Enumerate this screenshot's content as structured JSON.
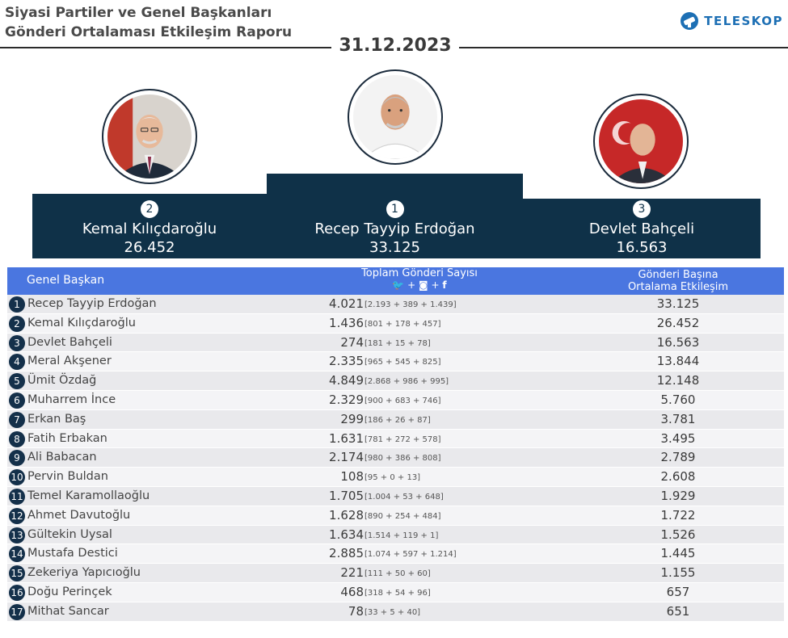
{
  "header": {
    "title_line1": "Siyasi Partiler ve Genel Başkanları",
    "title_line2": "Gönderi Ortalaması Etkileşim Raporu",
    "brand": "TELESKOP",
    "date": "31.12.2023"
  },
  "colors": {
    "navy": "#0f3148",
    "header_blue": "#4a76e0",
    "brand_blue": "#1d6fb4"
  },
  "podium": [
    {
      "rank": "2",
      "name": "Kemal Kılıçdaroğlu",
      "score": "26.452"
    },
    {
      "rank": "1",
      "name": "Recep Tayyip Erdoğan",
      "score": "33.125"
    },
    {
      "rank": "3",
      "name": "Devlet Bahçeli",
      "score": "16.563"
    }
  ],
  "table": {
    "col_name": "Genel Başkan",
    "col_posts": "Toplam Gönderi Sayısı",
    "col_posts_icons": "twitter-icon + instagram-icon + facebook-icon",
    "col_eng_line1": "Gönderi Başına",
    "col_eng_line2": "Ortalama Etkileşim",
    "rows": [
      {
        "rank": "1",
        "name": "Recep Tayyip Erdoğan",
        "total": "4.021",
        "breakdown": "[2.193 + 389 + 1.439]",
        "engagement": "33.125"
      },
      {
        "rank": "2",
        "name": "Kemal Kılıçdaroğlu",
        "total": "1.436",
        "breakdown": "[801 + 178 + 457]",
        "engagement": "26.452"
      },
      {
        "rank": "3",
        "name": "Devlet Bahçeli",
        "total": "274",
        "breakdown": "[181 + 15 + 78]",
        "engagement": "16.563"
      },
      {
        "rank": "4",
        "name": "Meral Akşener",
        "total": "2.335",
        "breakdown": "[965 + 545 + 825]",
        "engagement": "13.844"
      },
      {
        "rank": "5",
        "name": "Ümit Özdağ",
        "total": "4.849",
        "breakdown": "[2.868 + 986 + 995]",
        "engagement": "12.148"
      },
      {
        "rank": "6",
        "name": "Muharrem İnce",
        "total": "2.329",
        "breakdown": "[900 + 683 + 746]",
        "engagement": "5.760"
      },
      {
        "rank": "7",
        "name": "Erkan Baş",
        "total": "299",
        "breakdown": "[186 + 26 + 87]",
        "engagement": "3.781"
      },
      {
        "rank": "8",
        "name": "Fatih Erbakan",
        "total": "1.631",
        "breakdown": "[781 + 272 + 578]",
        "engagement": "3.495"
      },
      {
        "rank": "9",
        "name": "Ali Babacan",
        "total": "2.174",
        "breakdown": "[980 + 386 + 808]",
        "engagement": "2.789"
      },
      {
        "rank": "10",
        "name": "Pervin Buldan",
        "total": "108",
        "breakdown": "[95 + 0 + 13]",
        "engagement": "2.608"
      },
      {
        "rank": "11",
        "name": "Temel Karamollaoğlu",
        "total": "1.705",
        "breakdown": "[1.004 + 53 + 648]",
        "engagement": "1.929"
      },
      {
        "rank": "12",
        "name": "Ahmet Davutoğlu",
        "total": "1.628",
        "breakdown": "[890 + 254 + 484]",
        "engagement": "1.722"
      },
      {
        "rank": "13",
        "name": "Gültekin Uysal",
        "total": "1.634",
        "breakdown": "[1.514 + 119 + 1]",
        "engagement": "1.526"
      },
      {
        "rank": "14",
        "name": "Mustafa Destici",
        "total": "2.885",
        "breakdown": "[1.074 + 597 + 1.214]",
        "engagement": "1.445"
      },
      {
        "rank": "15",
        "name": "Zekeriya Yapıcıoğlu",
        "total": "221",
        "breakdown": "[111 + 50 + 60]",
        "engagement": "1.155"
      },
      {
        "rank": "16",
        "name": "Doğu Perinçek",
        "total": "468",
        "breakdown": "[318 + 54 + 96]",
        "engagement": "657"
      },
      {
        "rank": "17",
        "name": "Mithat Sancar",
        "total": "78",
        "breakdown": "[33 + 5 + 40]",
        "engagement": "651"
      }
    ]
  }
}
